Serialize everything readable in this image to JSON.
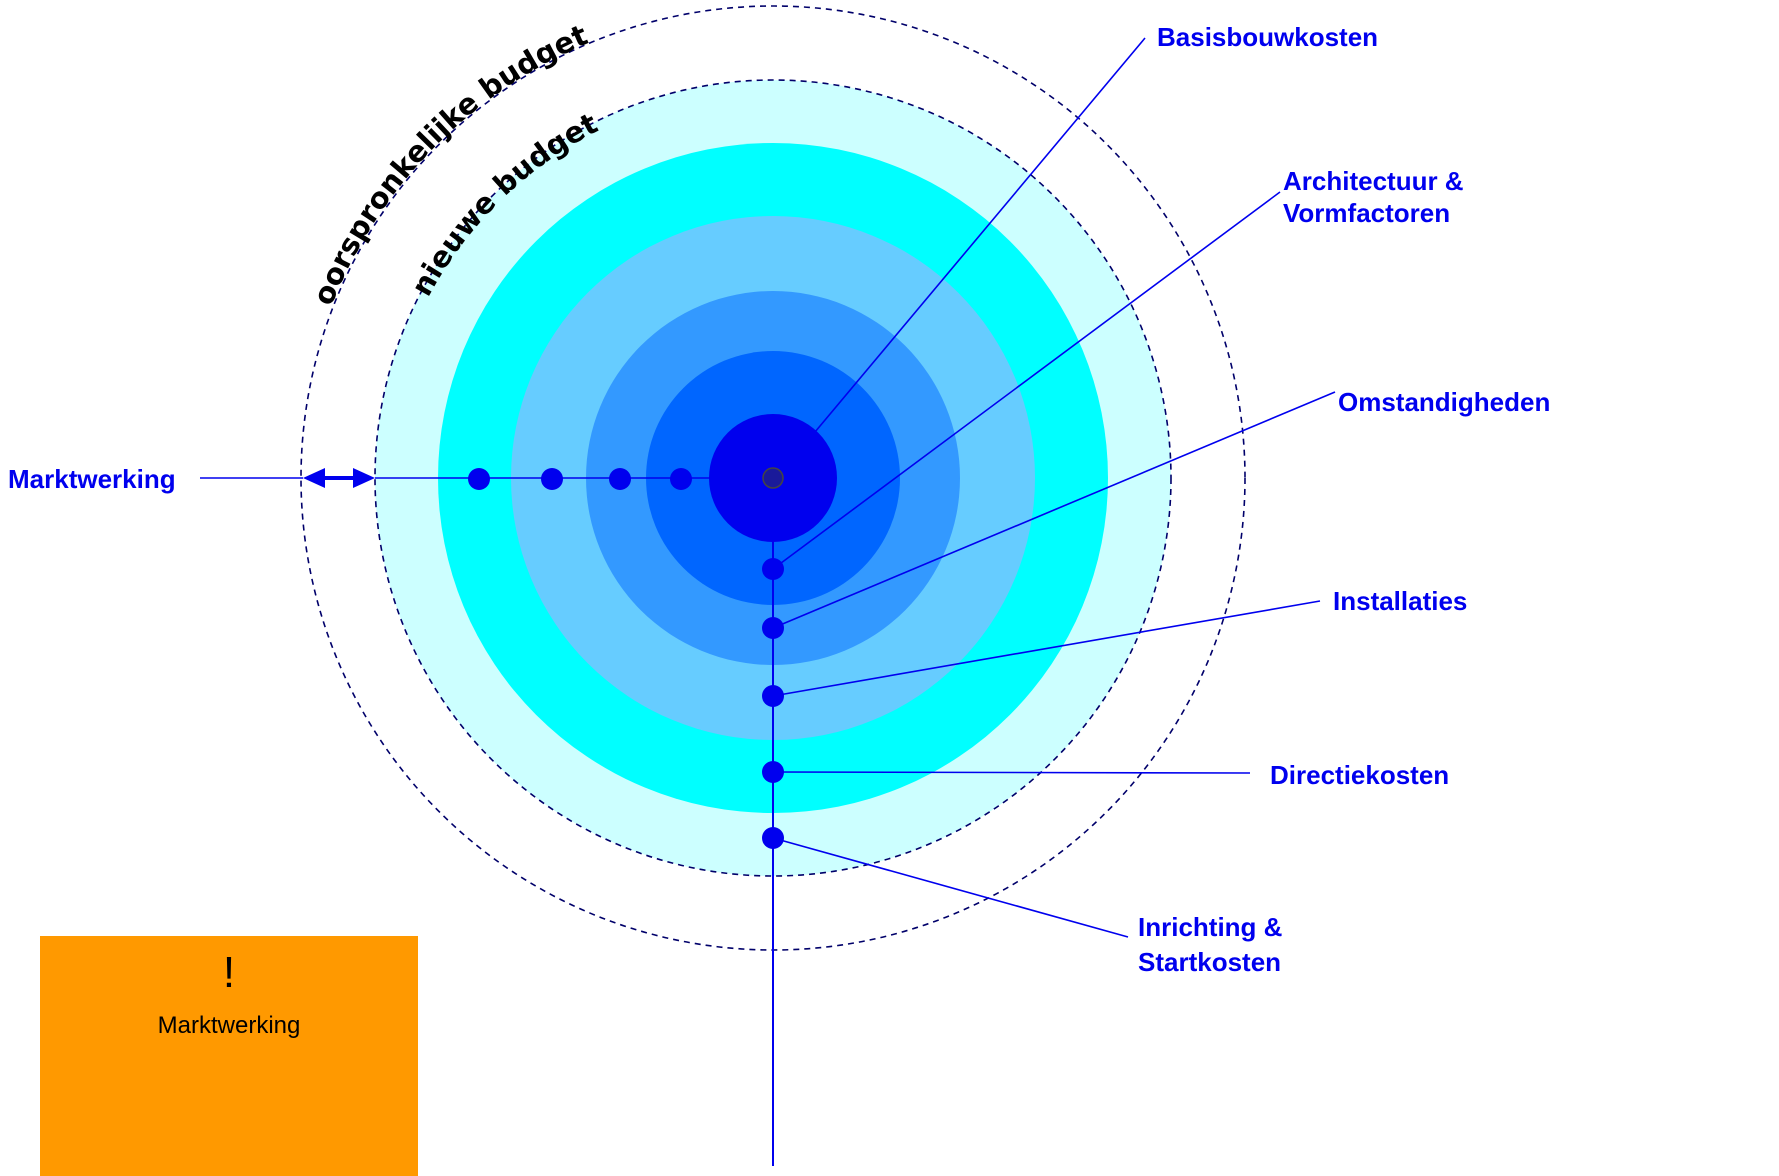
{
  "colors": {
    "ring_outer_light": "#ccffff",
    "ring_cyan": "#00ffff",
    "ring_light_blue": "#66ccff",
    "ring_mid_blue": "#3399ff",
    "ring_blue": "#0066ff",
    "core_blue": "#0000ee",
    "line": "#0000ee",
    "label": "#0000ee",
    "note_bg": "#ff9900"
  },
  "arc_labels": {
    "original": "oorspronkelijke budget",
    "new": "nieuwe budget"
  },
  "labels": {
    "marktwerking": "Marktwerking",
    "basisbouwkosten": "Basisbouwkosten",
    "architectuur_line1": "Architectuur &",
    "architectuur_line2": "Vormfactoren",
    "omstandigheden": "Omstandigheden",
    "installaties": "Installaties",
    "directiekosten": "Directiekosten",
    "inrichting_line1": "Inrichting &",
    "inrichting_line2": "Startkosten"
  },
  "note": {
    "mark": "!",
    "text": "Marktwerking"
  }
}
